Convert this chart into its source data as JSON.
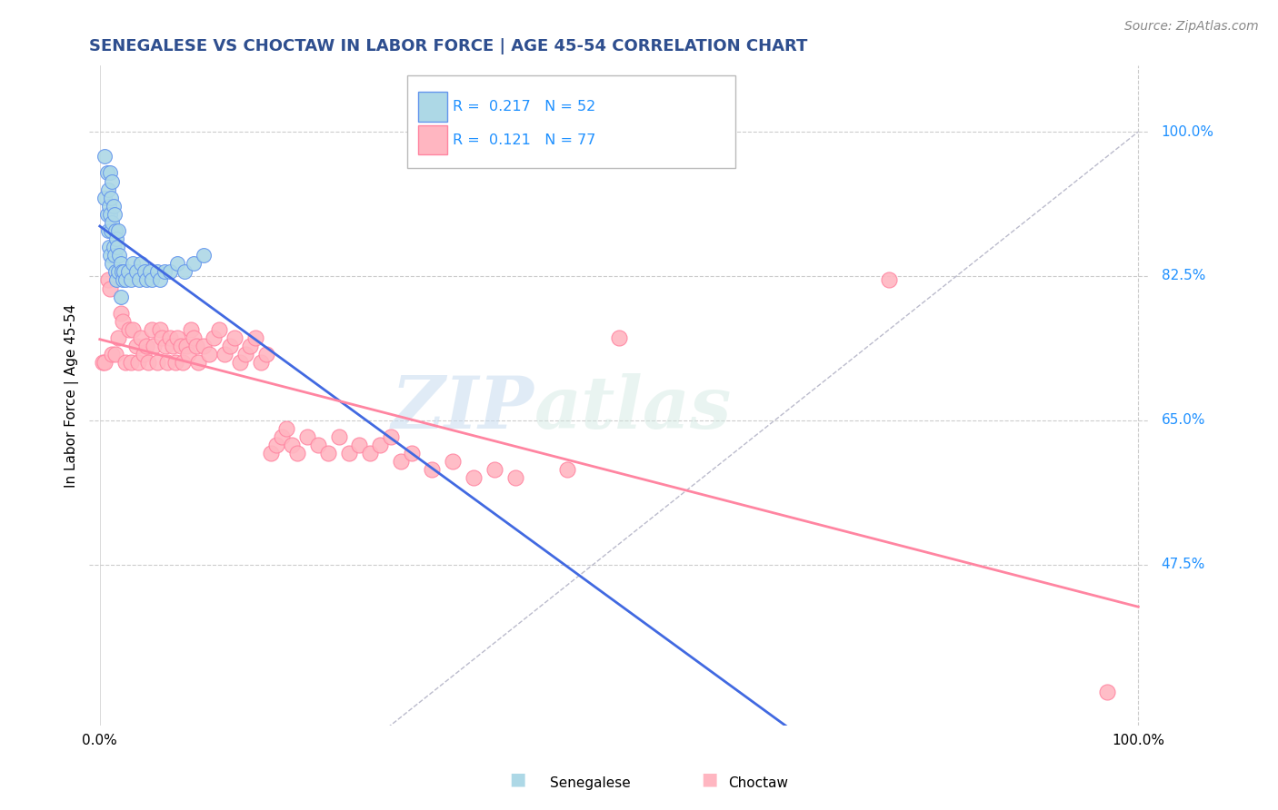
{
  "title": "SENEGALESE VS CHOCTAW IN LABOR FORCE | AGE 45-54 CORRELATION CHART",
  "source": "Source: ZipAtlas.com",
  "ylabel": "In Labor Force | Age 45-54",
  "xlim": [
    0.0,
    1.0
  ],
  "ylim": [
    0.28,
    1.08
  ],
  "xtick_labels": [
    "0.0%",
    "100.0%"
  ],
  "ytick_labels_right": [
    "100.0%",
    "82.5%",
    "65.0%",
    "47.5%"
  ],
  "ytick_vals_right": [
    1.0,
    0.825,
    0.65,
    0.475
  ],
  "senegalese_color": "#ADD8E6",
  "choctaw_color": "#FFB6C1",
  "senegalese_edge": "#6495ED",
  "choctaw_edge": "#FF85A1",
  "trend_senegalese_color": "#4169E1",
  "trend_choctaw_color": "#FF85A1",
  "diagonal_color": "#BBBBCC",
  "R_senegalese": 0.217,
  "N_senegalese": 52,
  "R_choctaw": 0.121,
  "N_choctaw": 77,
  "legend_R_color": "#1E90FF",
  "title_color": "#2F4F8F",
  "watermark_zip": "ZIP",
  "watermark_atlas": "atlas",
  "senegalese_x": [
    0.005,
    0.005,
    0.007,
    0.007,
    0.008,
    0.008,
    0.009,
    0.009,
    0.01,
    0.01,
    0.01,
    0.011,
    0.011,
    0.012,
    0.012,
    0.012,
    0.013,
    0.013,
    0.014,
    0.014,
    0.015,
    0.015,
    0.016,
    0.016,
    0.017,
    0.018,
    0.018,
    0.019,
    0.02,
    0.02,
    0.021,
    0.022,
    0.023,
    0.025,
    0.027,
    0.03,
    0.032,
    0.035,
    0.038,
    0.04,
    0.043,
    0.045,
    0.048,
    0.05,
    0.055,
    0.058,
    0.062,
    0.068,
    0.075,
    0.082,
    0.09,
    0.1
  ],
  "senegalese_y": [
    0.97,
    0.92,
    0.95,
    0.9,
    0.93,
    0.88,
    0.91,
    0.86,
    0.95,
    0.9,
    0.85,
    0.92,
    0.88,
    0.94,
    0.89,
    0.84,
    0.91,
    0.86,
    0.9,
    0.85,
    0.88,
    0.83,
    0.87,
    0.82,
    0.86,
    0.88,
    0.83,
    0.85,
    0.84,
    0.8,
    0.83,
    0.82,
    0.83,
    0.82,
    0.83,
    0.82,
    0.84,
    0.83,
    0.82,
    0.84,
    0.83,
    0.82,
    0.83,
    0.82,
    0.83,
    0.82,
    0.83,
    0.83,
    0.84,
    0.83,
    0.84,
    0.85
  ],
  "choctaw_x": [
    0.003,
    0.005,
    0.008,
    0.01,
    0.012,
    0.015,
    0.018,
    0.02,
    0.022,
    0.025,
    0.028,
    0.03,
    0.032,
    0.035,
    0.037,
    0.04,
    0.042,
    0.045,
    0.047,
    0.05,
    0.052,
    0.055,
    0.058,
    0.06,
    0.063,
    0.065,
    0.068,
    0.07,
    0.073,
    0.075,
    0.078,
    0.08,
    0.083,
    0.085,
    0.088,
    0.09,
    0.093,
    0.095,
    0.1,
    0.105,
    0.11,
    0.115,
    0.12,
    0.125,
    0.13,
    0.135,
    0.14,
    0.145,
    0.15,
    0.155,
    0.16,
    0.165,
    0.17,
    0.175,
    0.18,
    0.185,
    0.19,
    0.2,
    0.21,
    0.22,
    0.23,
    0.24,
    0.25,
    0.26,
    0.27,
    0.28,
    0.29,
    0.3,
    0.32,
    0.34,
    0.36,
    0.38,
    0.4,
    0.45,
    0.5,
    0.76,
    0.97
  ],
  "choctaw_y": [
    0.72,
    0.72,
    0.82,
    0.81,
    0.73,
    0.73,
    0.75,
    0.78,
    0.77,
    0.72,
    0.76,
    0.72,
    0.76,
    0.74,
    0.72,
    0.75,
    0.73,
    0.74,
    0.72,
    0.76,
    0.74,
    0.72,
    0.76,
    0.75,
    0.74,
    0.72,
    0.75,
    0.74,
    0.72,
    0.75,
    0.74,
    0.72,
    0.74,
    0.73,
    0.76,
    0.75,
    0.74,
    0.72,
    0.74,
    0.73,
    0.75,
    0.76,
    0.73,
    0.74,
    0.75,
    0.72,
    0.73,
    0.74,
    0.75,
    0.72,
    0.73,
    0.61,
    0.62,
    0.63,
    0.64,
    0.62,
    0.61,
    0.63,
    0.62,
    0.61,
    0.63,
    0.61,
    0.62,
    0.61,
    0.62,
    0.63,
    0.6,
    0.61,
    0.59,
    0.6,
    0.58,
    0.59,
    0.58,
    0.59,
    0.75,
    0.82,
    0.32
  ]
}
